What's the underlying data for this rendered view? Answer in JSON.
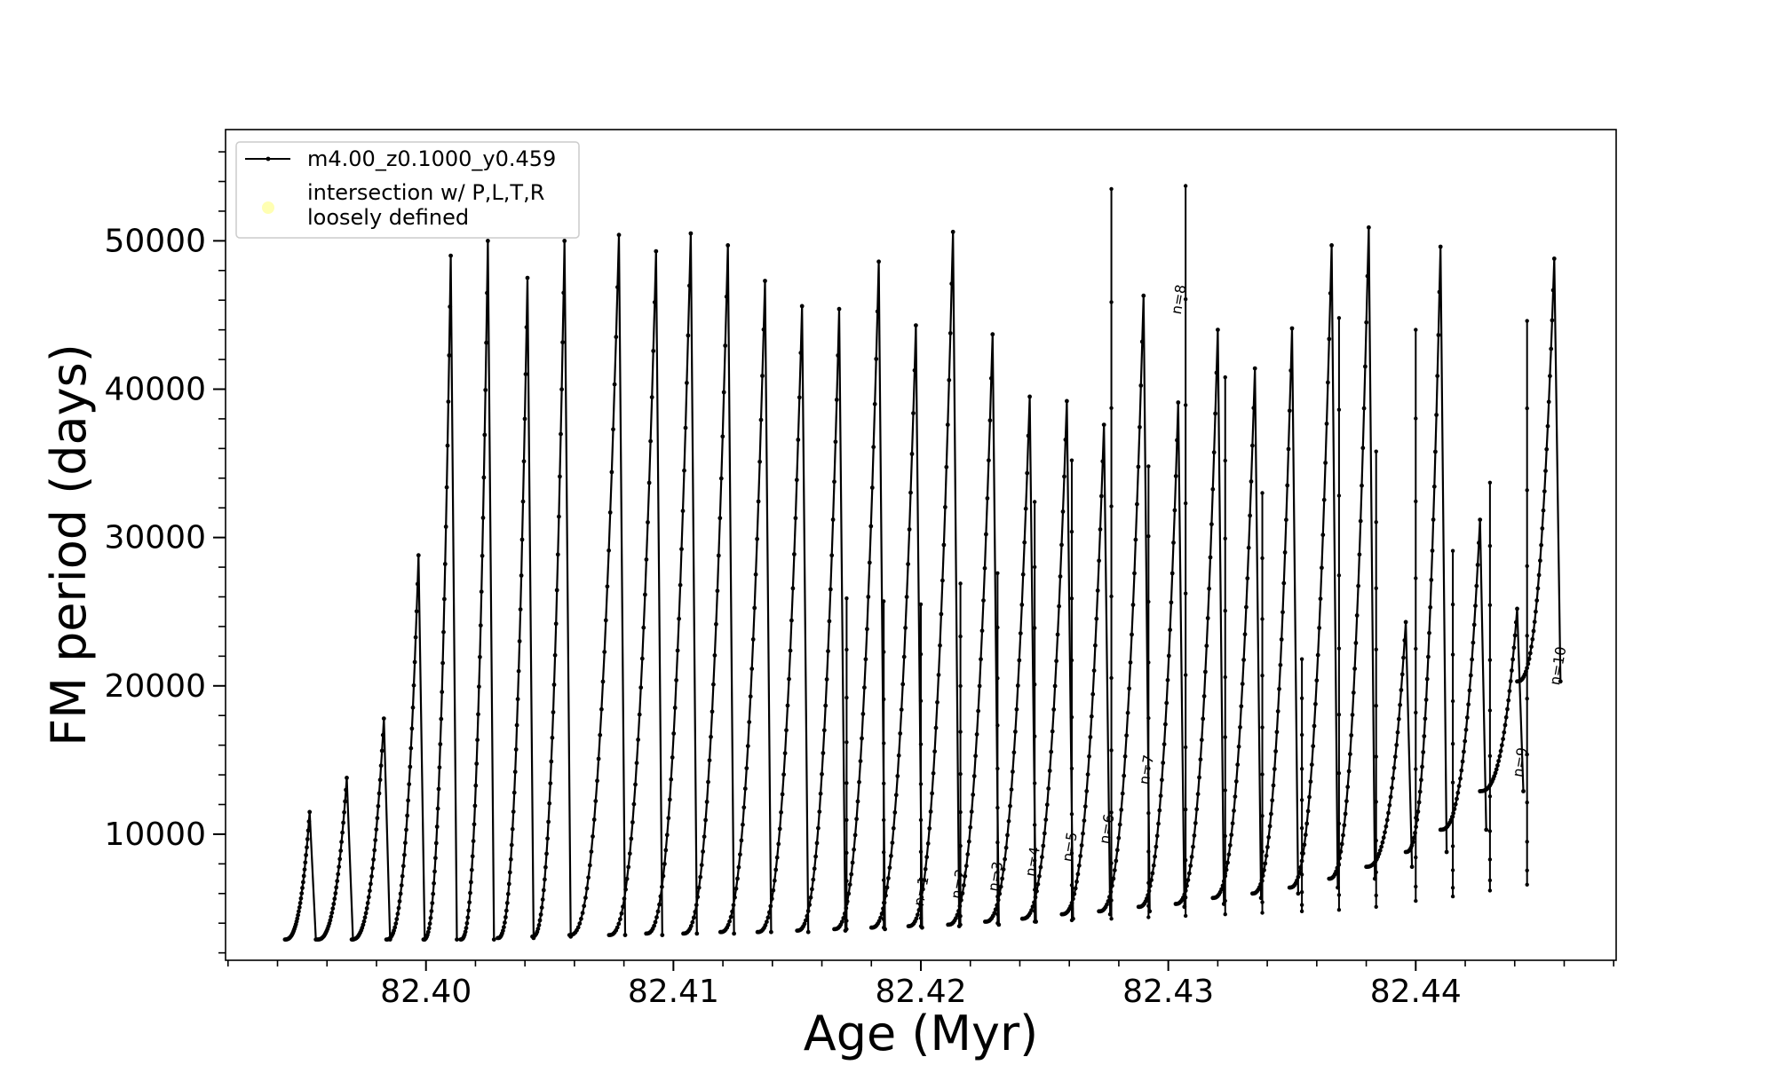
{
  "chart_data": {
    "type": "line",
    "title": "",
    "xlabel": "Age (Myr)",
    "ylabel": "FM period (days)",
    "xlim": [
      82.3919,
      82.4481
    ],
    "ylim": [
      1500,
      57500
    ],
    "x_ticks": [
      82.4,
      82.41,
      82.42,
      82.43,
      82.44
    ],
    "x_tick_labels": [
      "82.40",
      "82.41",
      "82.42",
      "82.43",
      "82.44"
    ],
    "y_ticks": [
      10000,
      20000,
      30000,
      40000,
      50000
    ],
    "y_tick_labels": [
      "10000",
      "20000",
      "30000",
      "40000",
      "50000"
    ],
    "grid": false,
    "legend": {
      "placement": "top-left",
      "entries": [
        {
          "label": "m4.00_z0.1000_y0.459",
          "marker": "line-with-dots",
          "color": "#000000"
        },
        {
          "label_lines": [
            "intersection w/ P,L,T,R",
            "loosely defined"
          ],
          "marker": "circle",
          "color": "#ffffb3"
        }
      ]
    },
    "series": [
      {
        "name": "m4.00_z0.1000_y0.459",
        "color": "#000000",
        "shape": "sawtooth loops (rise then sharp drop)",
        "cycles": [
          {
            "x_start": 82.3943,
            "x_peak": 82.3953,
            "y_min": 2900,
            "y_peak": 11500
          },
          {
            "x_start": 82.3956,
            "x_peak": 82.3968,
            "y_min": 2900,
            "y_peak": 13800
          },
          {
            "x_start": 82.397,
            "x_peak": 82.3983,
            "y_min": 2900,
            "y_peak": 17800
          },
          {
            "x_start": 82.3984,
            "x_peak": 82.3997,
            "y_min": 2900,
            "y_peak": 28800
          },
          {
            "x_start": 82.3999,
            "x_peak": 82.401,
            "y_min": 2900,
            "y_peak": 49000
          },
          {
            "x_start": 82.4014,
            "x_peak": 82.4025,
            "y_min": 2900,
            "y_peak": 50000
          },
          {
            "x_start": 82.4029,
            "x_peak": 82.4041,
            "y_min": 3000,
            "y_peak": 47500
          },
          {
            "x_start": 82.4043,
            "x_peak": 82.4056,
            "y_min": 3100,
            "y_peak": 50000
          },
          {
            "x_start": 82.4058,
            "x_peak": 82.4078,
            "y_min": 3200,
            "y_peak": 50400
          },
          {
            "x_start": 82.4074,
            "x_peak": 82.4093,
            "y_min": 3200,
            "y_peak": 49300
          },
          {
            "x_start": 82.4089,
            "x_peak": 82.4107,
            "y_min": 3300,
            "y_peak": 50500
          },
          {
            "x_start": 82.4104,
            "x_peak": 82.4122,
            "y_min": 3300,
            "y_peak": 49700
          },
          {
            "x_start": 82.4119,
            "x_peak": 82.4137,
            "y_min": 3400,
            "y_peak": 47300
          },
          {
            "x_start": 82.4134,
            "x_peak": 82.4152,
            "y_min": 3400,
            "y_peak": 45600
          },
          {
            "x_start": 82.415,
            "x_peak": 82.4167,
            "y_min": 3500,
            "y_peak": 45400
          },
          {
            "x_start": 82.4165,
            "x_peak": 82.4183,
            "y_min": 3600,
            "y_peak": 48600
          },
          {
            "x_start": 82.418,
            "x_peak": 82.4198,
            "y_min": 3700,
            "y_peak": 44300
          },
          {
            "x_start": 82.4195,
            "x_peak": 82.4213,
            "y_min": 3800,
            "y_peak": 50600
          },
          {
            "x_start": 82.4211,
            "x_peak": 82.4229,
            "y_min": 3900,
            "y_peak": 43700
          },
          {
            "x_start": 82.4226,
            "x_peak": 82.4244,
            "y_min": 4100,
            "y_peak": 39500
          },
          {
            "x_start": 82.4241,
            "x_peak": 82.4259,
            "y_min": 4300,
            "y_peak": 39200
          },
          {
            "x_start": 82.4257,
            "x_peak": 82.4274,
            "y_min": 4600,
            "y_peak": 37600
          },
          {
            "x_start": 82.4272,
            "x_peak": 82.429,
            "y_min": 4800,
            "y_peak": 46300
          },
          {
            "x_start": 82.4288,
            "x_peak": 82.4304,
            "y_min": 5100,
            "y_peak": 39100
          },
          {
            "x_start": 82.4303,
            "x_peak": 82.432,
            "y_min": 5300,
            "y_peak": 44000
          },
          {
            "x_start": 82.4318,
            "x_peak": 82.4335,
            "y_min": 5700,
            "y_peak": 41400
          },
          {
            "x_start": 82.4334,
            "x_peak": 82.435,
            "y_min": 6000,
            "y_peak": 44100
          },
          {
            "x_start": 82.4349,
            "x_peak": 82.4366,
            "y_min": 6400,
            "y_peak": 49700
          },
          {
            "x_start": 82.4365,
            "x_peak": 82.4381,
            "y_min": 7000,
            "y_peak": 50900
          },
          {
            "x_start": 82.438,
            "x_peak": 82.4396,
            "y_min": 7800,
            "y_peak": 24300
          },
          {
            "x_start": 82.4396,
            "x_peak": 82.441,
            "y_min": 8800,
            "y_peak": 49600
          },
          {
            "x_start": 82.441,
            "x_peak": 82.4426,
            "y_min": 10300,
            "y_peak": 31200
          },
          {
            "x_start": 82.4426,
            "x_peak": 82.4441,
            "y_min": 12900,
            "y_peak": 25200
          },
          {
            "x_start": 82.4441,
            "x_peak": 82.4456,
            "y_min": 20300,
            "y_peak": 48800
          }
        ],
        "extra_spikes": [
          {
            "x": 82.417,
            "y_low": 3600,
            "y_high": 25900
          },
          {
            "x": 82.4185,
            "y_low": 3700,
            "y_high": 25700
          },
          {
            "x": 82.42,
            "y_low": 3800,
            "y_high": 25500
          },
          {
            "x": 82.4216,
            "y_low": 3900,
            "y_high": 26900
          },
          {
            "x": 82.4231,
            "y_low": 4000,
            "y_high": 27600
          },
          {
            "x": 82.4246,
            "y_low": 4100,
            "y_high": 32400
          },
          {
            "x": 82.4261,
            "y_low": 4200,
            "y_high": 35200
          },
          {
            "x": 82.4277,
            "y_low": 4300,
            "y_high": 53500
          },
          {
            "x": 82.4292,
            "y_low": 4400,
            "y_high": 34800
          },
          {
            "x": 82.4307,
            "y_low": 4500,
            "y_high": 53700
          },
          {
            "x": 82.4323,
            "y_low": 4600,
            "y_high": 40800
          },
          {
            "x": 82.4338,
            "y_low": 4700,
            "y_high": 33000
          },
          {
            "x": 82.4354,
            "y_low": 4800,
            "y_high": 21800
          },
          {
            "x": 82.4369,
            "y_low": 4900,
            "y_high": 44800
          },
          {
            "x": 82.4384,
            "y_low": 5100,
            "y_high": 35800
          },
          {
            "x": 82.44,
            "y_low": 5500,
            "y_high": 44000
          },
          {
            "x": 82.4415,
            "y_low": 5800,
            "y_high": 29100
          },
          {
            "x": 82.443,
            "y_low": 6200,
            "y_high": 33700
          },
          {
            "x": 82.4445,
            "y_low": 6600,
            "y_high": 44600
          }
        ]
      }
    ],
    "annotations": [
      {
        "text": "n=1",
        "x": 82.4201,
        "y": 5100
      },
      {
        "text": "n=2",
        "x": 82.4216,
        "y": 5600
      },
      {
        "text": "n=3",
        "x": 82.4231,
        "y": 6100
      },
      {
        "text": "n=4",
        "x": 82.4246,
        "y": 7100
      },
      {
        "text": "n=5",
        "x": 82.4261,
        "y": 8100
      },
      {
        "text": "n=6",
        "x": 82.4276,
        "y": 9300
      },
      {
        "text": "n=7",
        "x": 82.4292,
        "y": 13300
      },
      {
        "text": "n=8",
        "x": 82.4305,
        "y": 45000
      },
      {
        "text": "n=9",
        "x": 82.4443,
        "y": 13800
      },
      {
        "text": "n=10",
        "x": 82.4458,
        "y": 20000
      }
    ]
  }
}
